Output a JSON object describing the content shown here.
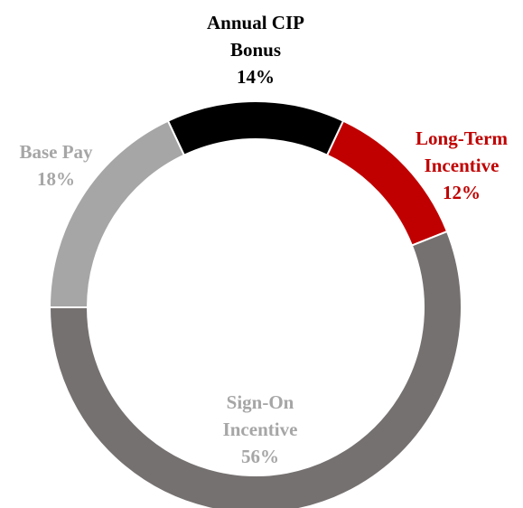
{
  "chart_data": {
    "type": "donut",
    "categories": [
      "Annual CIP Bonus",
      "Long-Term Incentive",
      "Sign-On Incentive",
      "Base Pay"
    ],
    "values": [
      14,
      12,
      56,
      18
    ],
    "value_labels": [
      "14%",
      "12%",
      "56%",
      "18%"
    ],
    "colors": [
      "#000000",
      "#c00000",
      "#767171",
      "#a6a6a6"
    ]
  }
}
